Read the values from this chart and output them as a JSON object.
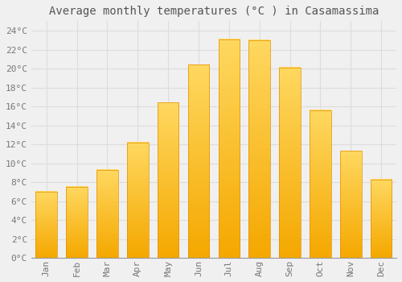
{
  "title": "Average monthly temperatures (°C ) in Casamassima",
  "months": [
    "Jan",
    "Feb",
    "Mar",
    "Apr",
    "May",
    "Jun",
    "Jul",
    "Aug",
    "Sep",
    "Oct",
    "Nov",
    "Dec"
  ],
  "values": [
    7.0,
    7.5,
    9.3,
    12.2,
    16.4,
    20.4,
    23.1,
    23.0,
    20.1,
    15.6,
    11.3,
    8.3
  ],
  "bar_color_top": "#FFC93C",
  "bar_color_bottom": "#F5A800",
  "bar_edge_color": "#E09000",
  "background_color": "#F0F0F0",
  "grid_color": "#DDDDDD",
  "text_color": "#777777",
  "ylim": [
    0,
    25
  ],
  "yticks": [
    0,
    2,
    4,
    6,
    8,
    10,
    12,
    14,
    16,
    18,
    20,
    22,
    24
  ],
  "title_fontsize": 10,
  "tick_fontsize": 8,
  "bar_width": 0.7
}
